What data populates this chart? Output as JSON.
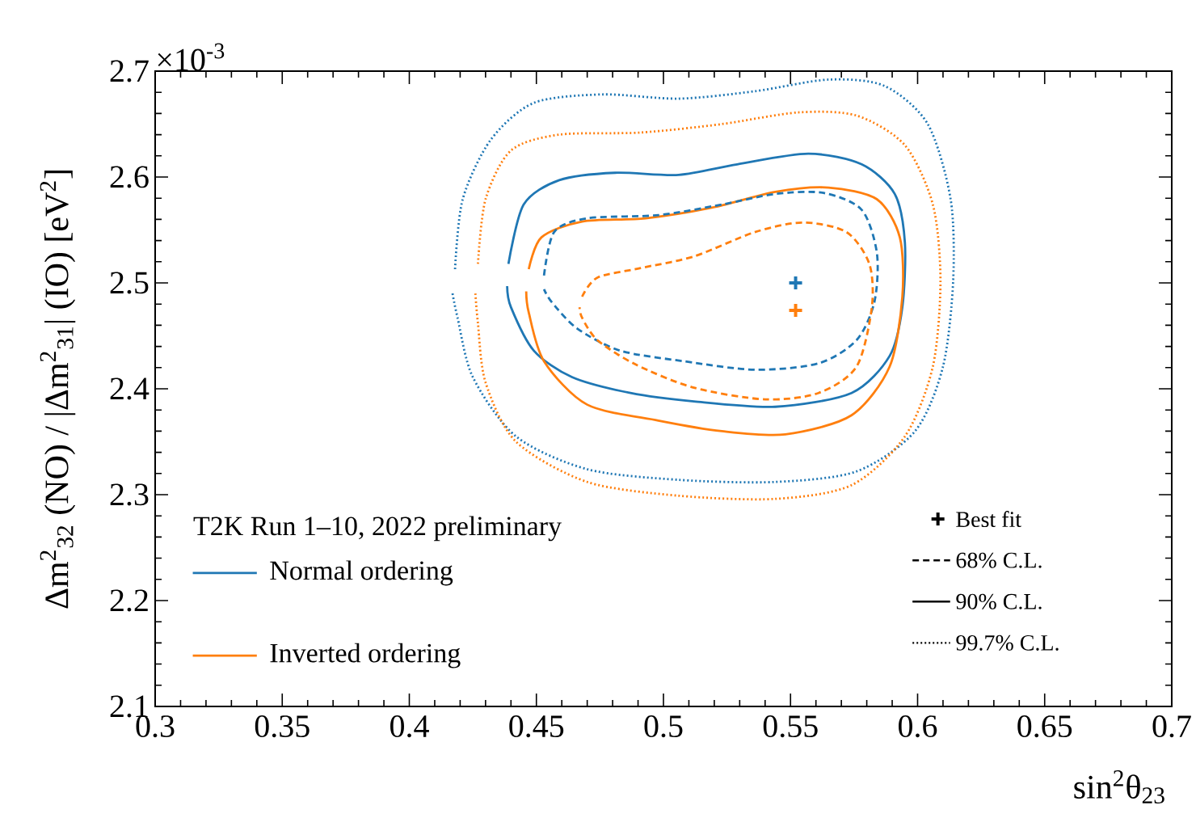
{
  "chart_data": {
    "type": "line",
    "xlabel": "sin$^{2}$θ$_{23}$",
    "ylabel": "Δm$^{2}$$_{32}$ (NO) / |Δm$^{2}$$_{31}$| (IO) [eV$^{2}$]",
    "xlim": [
      0.3,
      0.7
    ],
    "ylim": [
      2.1,
      2.7
    ],
    "xticks": [
      0.3,
      0.35,
      0.4,
      0.45,
      0.5,
      0.55,
      0.6,
      0.65,
      0.7
    ],
    "yticks": [
      2.1,
      2.2,
      2.3,
      2.4,
      2.5,
      2.6,
      2.7
    ],
    "legend": "bottom left",
    "annotations": [
      "×10$^{-3}$",
      "T2K Run 1–10, 2022 preliminary",
      "Best fit",
      "68% C.L.",
      "90% C.L.",
      "99.7% C.L."
    ],
    "series": [
      {
        "name": "Normal ordering",
        "color": "#1f77b4",
        "line_style": "solid",
        "x": [
          0.439,
          0.445,
          0.459,
          0.481,
          0.506,
          0.529,
          0.557,
          0.578,
          0.591,
          0.595,
          0.594,
          0.589,
          0.574,
          0.544,
          0.512,
          0.487,
          0.464,
          0.449,
          0.44,
          0.4385
        ],
        "values": [
          2.518,
          2.574,
          2.597,
          2.604,
          2.602,
          2.612,
          2.622,
          2.612,
          2.584,
          2.538,
          2.477,
          2.431,
          2.396,
          2.383,
          2.388,
          2.396,
          2.411,
          2.436,
          2.477,
          2.497
        ]
      },
      {
        "name": "Inverted ordering",
        "color": "#ff7f0e",
        "line_style": "solid",
        "x": [
          0.447,
          0.452,
          0.468,
          0.493,
          0.519,
          0.544,
          0.565,
          0.584,
          0.593,
          0.594,
          0.589,
          0.574,
          0.548,
          0.523,
          0.498,
          0.47,
          0.453,
          0.447,
          0.446
        ],
        "values": [
          2.513,
          2.543,
          2.558,
          2.561,
          2.571,
          2.586,
          2.59,
          2.579,
          2.543,
          2.487,
          2.421,
          2.375,
          2.357,
          2.36,
          2.37,
          2.385,
          2.426,
          2.472,
          2.492
        ]
      },
      {
        "color": "#1f77b4",
        "line_style": "dashed",
        "x": [
          0.453,
          0.457,
          0.47,
          0.498,
          0.523,
          0.544,
          0.563,
          0.578,
          0.584,
          0.583,
          0.576,
          0.561,
          0.536,
          0.508,
          0.483,
          0.466,
          0.456,
          0.453
        ],
        "values": [
          2.507,
          2.548,
          2.561,
          2.564,
          2.574,
          2.584,
          2.585,
          2.569,
          2.528,
          2.482,
          2.446,
          2.424,
          2.418,
          2.426,
          2.436,
          2.457,
          2.482,
          2.494
        ]
      },
      {
        "color": "#ff7f0e",
        "line_style": "dashed",
        "x": [
          0.468,
          0.474,
          0.491,
          0.512,
          0.536,
          0.555,
          0.572,
          0.581,
          0.582,
          0.576,
          0.561,
          0.54,
          0.512,
          0.489,
          0.474,
          0.468,
          0.467
        ],
        "values": [
          2.487,
          2.505,
          2.514,
          2.525,
          2.548,
          2.557,
          2.548,
          2.518,
          2.477,
          2.421,
          2.396,
          2.39,
          2.401,
          2.423,
          2.446,
          2.467,
          2.477
        ]
      },
      {
        "color": "#1f77b4",
        "line_style": "dotted",
        "x": [
          0.418,
          0.421,
          0.432,
          0.449,
          0.476,
          0.506,
          0.536,
          0.565,
          0.587,
          0.604,
          0.613,
          0.614,
          0.61,
          0.599,
          0.576,
          0.544,
          0.506,
          0.47,
          0.442,
          0.425,
          0.419,
          0.417
        ],
        "values": [
          2.513,
          2.579,
          2.635,
          2.67,
          2.678,
          2.674,
          2.681,
          2.692,
          2.686,
          2.65,
          2.579,
          2.502,
          2.421,
          2.36,
          2.322,
          2.312,
          2.314,
          2.324,
          2.355,
          2.411,
          2.467,
          2.49
        ]
      },
      {
        "color": "#ff7f0e",
        "line_style": "dotted",
        "x": [
          0.427,
          0.43,
          0.44,
          0.459,
          0.491,
          0.523,
          0.553,
          0.576,
          0.595,
          0.606,
          0.609,
          0.606,
          0.595,
          0.574,
          0.544,
          0.506,
          0.47,
          0.442,
          0.43,
          0.427,
          0.426
        ],
        "values": [
          2.518,
          2.579,
          2.625,
          2.64,
          2.642,
          2.65,
          2.661,
          2.658,
          2.63,
          2.574,
          2.502,
          2.421,
          2.355,
          2.309,
          2.296,
          2.299,
          2.312,
          2.35,
          2.406,
          2.462,
          2.49
        ]
      },
      {
        "type": "scatter",
        "marker": "cross",
        "color": "#1f77b4",
        "x": [
          0.552
        ],
        "values": [
          2.5
        ]
      },
      {
        "type": "scatter",
        "marker": "cross",
        "color": "#ff7f0e",
        "x": [
          0.552
        ],
        "values": [
          2.474
        ]
      }
    ]
  }
}
